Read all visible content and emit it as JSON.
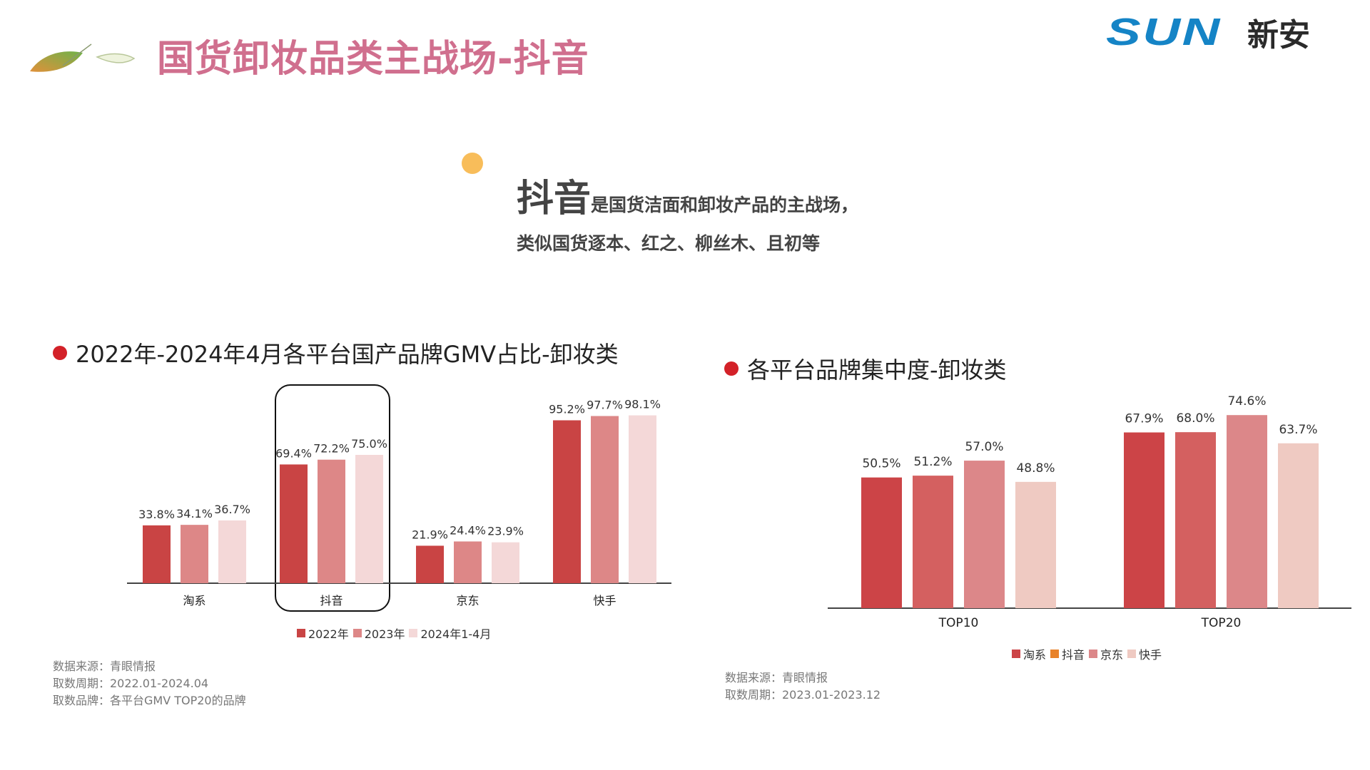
{
  "header": {
    "title": "国货卸妆品类主战场-抖音",
    "logo_text": "SUN",
    "logo_cn": "新安"
  },
  "summary": {
    "emphasis": "抖音",
    "line1": "是国货洁面和卸妆产品的主战场，",
    "line2": "类似国货逐本、红之、柳丝木、且初等"
  },
  "left_notes": [
    "数据来源：青眼情报",
    "取数周期：2022.01-2024.04",
    "取数品牌：各平台GMV TOP20的品牌"
  ],
  "right_notes": [
    "数据来源：青眼情报",
    "取数周期：2023.01-2023.12"
  ],
  "chart_data": [
    {
      "type": "bar",
      "title": "2022年-2024年4月各平台国产品牌GMV占比-卸妆类",
      "categories": [
        "淘系",
        "抖音",
        "京东",
        "快手"
      ],
      "highlight": "抖音",
      "series": [
        {
          "name": "2022年",
          "color": "#c94444",
          "values": [
            33.8,
            69.4,
            21.9,
            95.2
          ],
          "labels": [
            "33.8%",
            "69.4%",
            "21.9%",
            "95.2%"
          ]
        },
        {
          "name": "2023年",
          "color": "#dd8787",
          "values": [
            34.1,
            72.2,
            24.4,
            97.7
          ],
          "labels": [
            "34.1%",
            "72.2%",
            "24.4%",
            "97.7%"
          ]
        },
        {
          "name": "2024年1-4月",
          "color": "#f4d8d8",
          "values": [
            36.7,
            75.0,
            23.9,
            98.1
          ],
          "labels": [
            "36.7%",
            "75.0%",
            "23.9%",
            "98.1%"
          ]
        }
      ],
      "ylim": [
        0,
        100
      ],
      "grid": false,
      "legend": "bottom"
    },
    {
      "type": "bar",
      "title": "各平台品牌集中度-卸妆类",
      "categories": [
        "TOP10",
        "TOP20"
      ],
      "series": [
        {
          "name": "淘系",
          "color": "#cc4447",
          "legend_color": "#cc4447",
          "values": [
            50.5,
            67.9
          ],
          "labels": [
            "50.5%",
            "67.9%"
          ]
        },
        {
          "name": "抖音",
          "color": "#d46060",
          "legend_color": "#e8832b",
          "values": [
            51.2,
            68.0
          ],
          "labels": [
            "51.2%",
            "68.0%"
          ]
        },
        {
          "name": "京东",
          "color": "#dc8789",
          "legend_color": "#dc8789",
          "values": [
            57.0,
            74.6
          ],
          "labels": [
            "57.0%",
            "74.6%"
          ]
        },
        {
          "name": "快手",
          "color": "#efcac2",
          "legend_color": "#efcac2",
          "values": [
            48.8,
            63.7
          ],
          "labels": [
            "48.8%",
            "63.7%"
          ]
        }
      ],
      "ylim": [
        0,
        100
      ],
      "grid": false,
      "legend": "bottom"
    }
  ]
}
